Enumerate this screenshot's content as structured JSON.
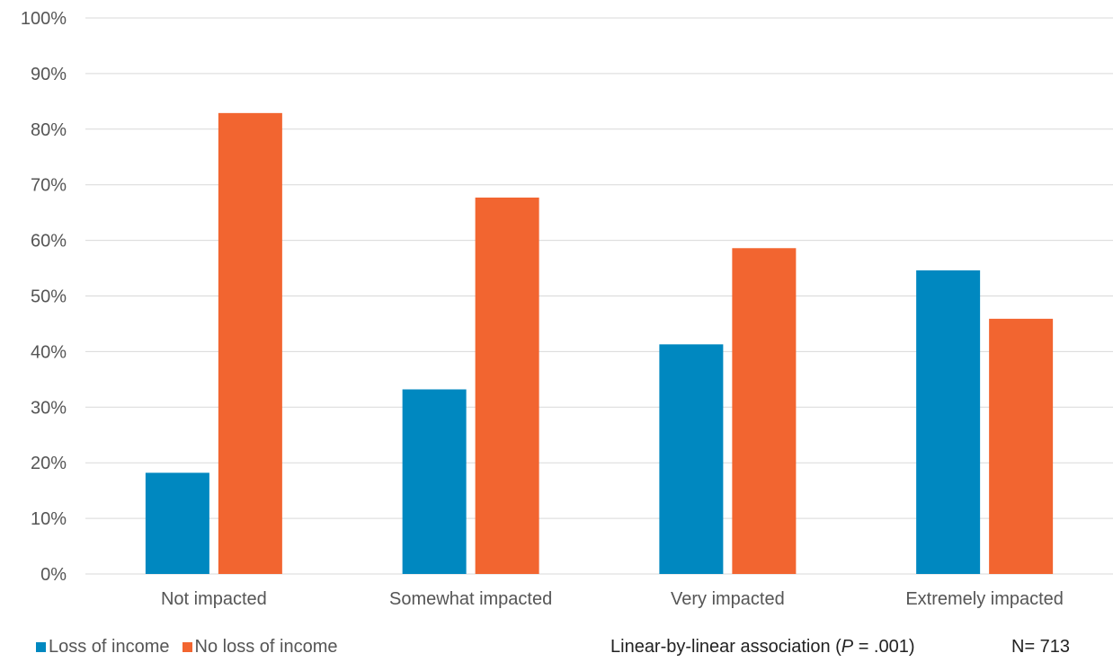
{
  "chart_data": {
    "type": "bar",
    "categories": [
      "Not impacted",
      "Somewhat impacted",
      "Very impacted",
      "Extremely impacted"
    ],
    "series": [
      {
        "name": "Loss of income",
        "color": "#0088C0",
        "values": [
          18.2,
          33.2,
          41.3,
          54.6
        ]
      },
      {
        "name": "No loss of income",
        "color": "#F26530",
        "values": [
          82.9,
          67.7,
          58.6,
          45.9
        ]
      }
    ],
    "ylim": [
      0,
      100
    ],
    "yticks": [
      0,
      10,
      20,
      30,
      40,
      50,
      60,
      70,
      80,
      90,
      100
    ],
    "ytick_labels": [
      "0%",
      "10%",
      "20%",
      "30%",
      "40%",
      "50%",
      "60%",
      "70%",
      "80%",
      "90%",
      "100%"
    ],
    "grid": true,
    "gridline_color": "#D9D9D9",
    "legend_position": "bottom-left"
  },
  "notes": {
    "assoc_prefix": "Linear-by-linear association (",
    "assoc_p": "P",
    "assoc_suffix": " = .001)",
    "n_label": "N= 713"
  }
}
